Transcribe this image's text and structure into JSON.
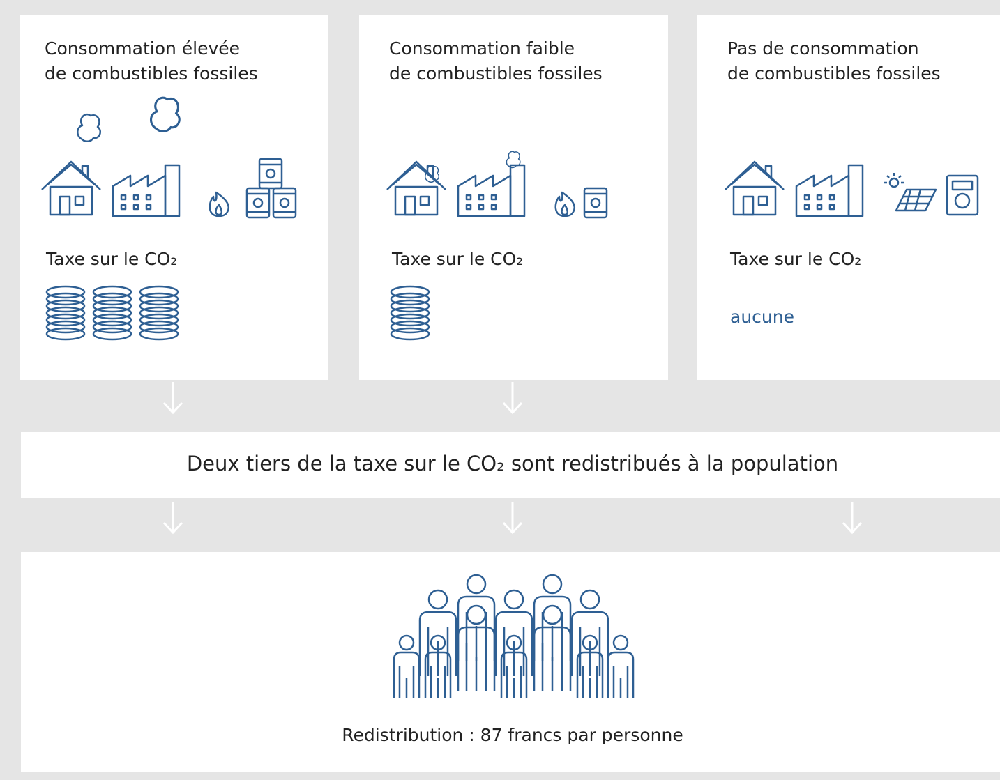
{
  "columns": [
    {
      "title": [
        "Consommation élevée",
        "de combustibles fossiles"
      ],
      "tax_label": "Taxe sur le CO₂"
    },
    {
      "title": [
        "Consommation faible",
        "de combustibles fossiles"
      ],
      "tax_label": "Taxe sur le CO₂"
    },
    {
      "title": [
        "Pas de consommation",
        "de combustibles fossiles"
      ],
      "tax_label": "Taxe sur le CO₂",
      "tax_amount": "aucune"
    }
  ],
  "banner": "Deux tiers de la taxe sur le CO₂ sont redistribués à la population",
  "footer": "Redistribution : 87 francs par personne"
}
